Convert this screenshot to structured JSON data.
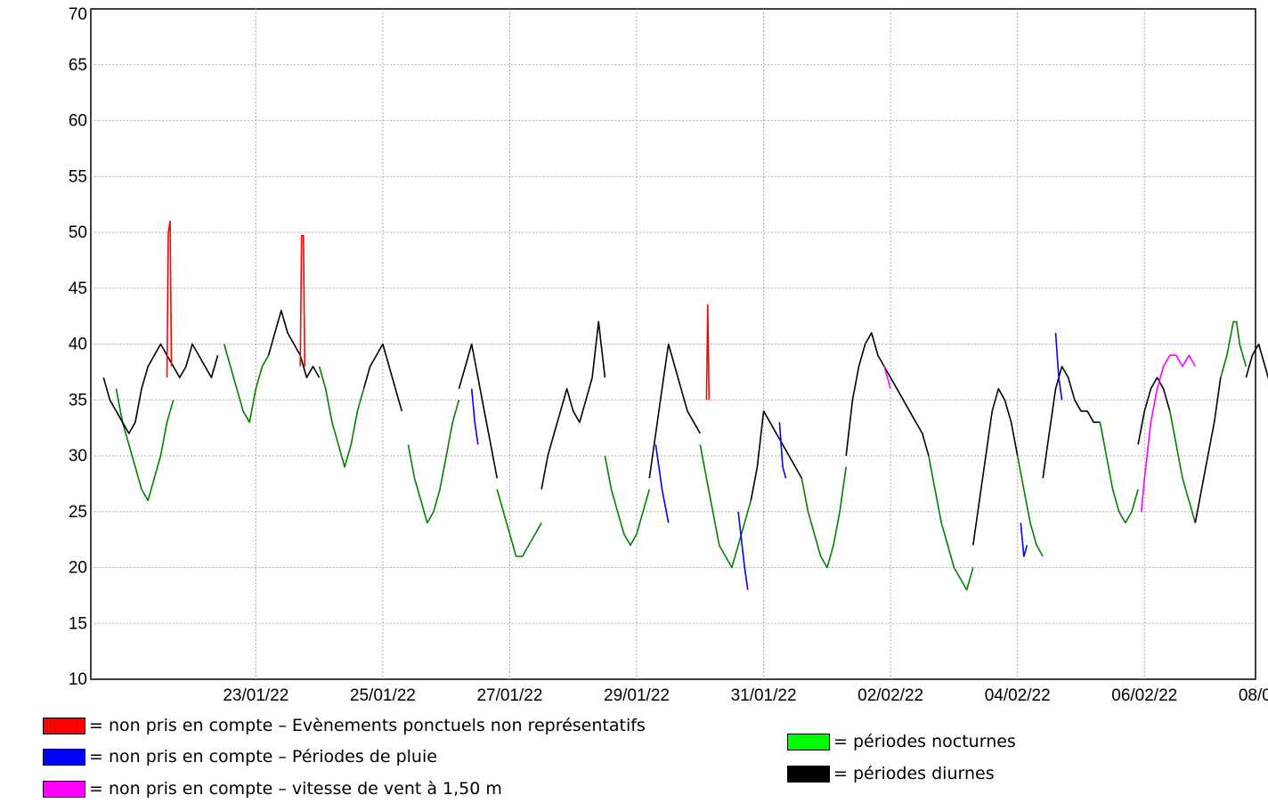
{
  "chart_data": {
    "type": "line",
    "title": "",
    "xlabel": "",
    "ylabel": "",
    "ylim": [
      10,
      70
    ],
    "y_ticks": [
      10,
      15,
      20,
      25,
      30,
      35,
      40,
      45,
      50,
      55,
      60,
      65,
      70
    ],
    "y_tick_labels": [
      "10",
      "15",
      "20",
      "25",
      "30",
      "35",
      "40",
      "45",
      "50",
      "55",
      "60",
      "65",
      "70"
    ],
    "xlim": [
      -1.6,
      16.75
    ],
    "x_tick_labels": [
      "23/01/22",
      "25/01/22",
      "27/01/22",
      "29/01/22",
      "31/01/22",
      "02/02/22",
      "04/02/22",
      "06/02/22",
      "08/02/22"
    ],
    "x_tick_days": [
      1,
      3,
      5,
      7,
      9,
      11,
      13,
      15,
      17
    ],
    "x_axis_origin_date": "22/01/22",
    "grid": true,
    "legend_placement": "bottom",
    "series": [
      {
        "color": "#008000",
        "segments": [
          [
            [
              -1.2,
              36
            ],
            [
              -1.1,
              33
            ],
            [
              -0.9,
              29
            ],
            [
              -0.8,
              27
            ],
            [
              -0.7,
              26
            ],
            [
              -0.6,
              28
            ],
            [
              -0.5,
              30
            ],
            [
              -0.4,
              33
            ],
            [
              -0.3,
              35
            ]
          ],
          [
            [
              0.5,
              40
            ],
            [
              0.6,
              38
            ],
            [
              0.7,
              36
            ],
            [
              0.8,
              34
            ],
            [
              0.9,
              33
            ],
            [
              1.0,
              36
            ],
            [
              1.1,
              38
            ],
            [
              1.2,
              39
            ]
          ],
          [
            [
              2.0,
              38
            ],
            [
              2.1,
              36
            ],
            [
              2.2,
              33
            ],
            [
              2.3,
              31
            ],
            [
              2.4,
              29
            ],
            [
              2.5,
              31
            ],
            [
              2.6,
              34
            ],
            [
              2.7,
              36
            ]
          ],
          [
            [
              3.4,
              31
            ],
            [
              3.5,
              28
            ],
            [
              3.6,
              26
            ],
            [
              3.7,
              24
            ],
            [
              3.8,
              25
            ],
            [
              3.9,
              27
            ],
            [
              4.0,
              30
            ],
            [
              4.1,
              33
            ],
            [
              4.2,
              35
            ]
          ],
          [
            [
              4.8,
              27
            ],
            [
              4.9,
              25
            ],
            [
              5.0,
              23
            ],
            [
              5.1,
              21
            ],
            [
              5.2,
              21
            ],
            [
              5.3,
              22
            ],
            [
              5.4,
              23
            ],
            [
              5.5,
              24
            ]
          ],
          [
            [
              6.5,
              30
            ],
            [
              6.6,
              27
            ],
            [
              6.7,
              25
            ],
            [
              6.8,
              23
            ],
            [
              6.9,
              22
            ],
            [
              7.0,
              23
            ],
            [
              7.1,
              25
            ],
            [
              7.2,
              27
            ]
          ],
          [
            [
              8.0,
              31
            ],
            [
              8.1,
              28
            ],
            [
              8.2,
              25
            ],
            [
              8.3,
              22
            ],
            [
              8.4,
              21
            ],
            [
              8.5,
              20
            ],
            [
              8.6,
              22
            ],
            [
              8.7,
              24
            ],
            [
              8.8,
              26
            ]
          ],
          [
            [
              9.6,
              28
            ],
            [
              9.7,
              25
            ],
            [
              9.8,
              23
            ],
            [
              9.9,
              21
            ],
            [
              10.0,
              20
            ],
            [
              10.1,
              22
            ],
            [
              10.2,
              25
            ],
            [
              10.3,
              29
            ]
          ],
          [
            [
              11.6,
              30
            ],
            [
              11.7,
              27
            ],
            [
              11.8,
              24
            ],
            [
              11.9,
              22
            ],
            [
              12.0,
              20
            ],
            [
              12.1,
              19
            ],
            [
              12.2,
              18
            ],
            [
              12.3,
              20
            ]
          ],
          [
            [
              13.0,
              30
            ],
            [
              13.1,
              27
            ],
            [
              13.2,
              24
            ],
            [
              13.3,
              22
            ],
            [
              13.4,
              21
            ]
          ],
          [
            [
              14.3,
              33
            ],
            [
              14.4,
              30
            ],
            [
              14.5,
              27
            ],
            [
              14.6,
              25
            ],
            [
              14.7,
              24
            ],
            [
              14.8,
              25
            ],
            [
              14.9,
              27
            ]
          ],
          [
            [
              15.4,
              34
            ],
            [
              15.5,
              31
            ],
            [
              15.6,
              28
            ],
            [
              15.7,
              26
            ],
            [
              15.8,
              24
            ]
          ],
          [
            [
              16.2,
              37
            ],
            [
              16.3,
              39
            ],
            [
              16.4,
              42
            ],
            [
              16.45,
              42
            ],
            [
              16.5,
              40
            ],
            [
              16.6,
              38
            ]
          ]
        ]
      },
      {
        "color": "#000000",
        "segments": [
          [
            [
              -1.4,
              37
            ],
            [
              -1.3,
              35
            ],
            [
              -1.2,
              34
            ],
            [
              -1.1,
              33
            ],
            [
              -1.0,
              32
            ],
            [
              -0.9,
              33
            ],
            [
              -0.8,
              36
            ],
            [
              -0.7,
              38
            ],
            [
              -0.6,
              39
            ],
            [
              -0.5,
              40
            ],
            [
              -0.4,
              39
            ],
            [
              -0.3,
              38
            ],
            [
              -0.2,
              37
            ],
            [
              -0.1,
              38
            ],
            [
              0.0,
              40
            ],
            [
              0.1,
              39
            ],
            [
              0.2,
              38
            ],
            [
              0.3,
              37
            ],
            [
              0.4,
              39
            ]
          ],
          [
            [
              1.2,
              39
            ],
            [
              1.3,
              41
            ],
            [
              1.4,
              43
            ],
            [
              1.5,
              41
            ],
            [
              1.6,
              40
            ],
            [
              1.7,
              39
            ],
            [
              1.8,
              37
            ],
            [
              1.9,
              38
            ],
            [
              2.0,
              37
            ]
          ],
          [
            [
              2.7,
              36
            ],
            [
              2.8,
              38
            ],
            [
              2.9,
              39
            ],
            [
              3.0,
              40
            ],
            [
              3.1,
              38
            ],
            [
              3.2,
              36
            ],
            [
              3.3,
              34
            ]
          ],
          [
            [
              4.2,
              36
            ],
            [
              4.3,
              38
            ],
            [
              4.4,
              40
            ],
            [
              4.5,
              37
            ],
            [
              4.6,
              34
            ],
            [
              4.7,
              31
            ],
            [
              4.8,
              28
            ]
          ],
          [
            [
              5.5,
              27
            ],
            [
              5.6,
              30
            ],
            [
              5.7,
              32
            ],
            [
              5.8,
              34
            ],
            [
              5.9,
              36
            ],
            [
              6.0,
              34
            ],
            [
              6.1,
              33
            ],
            [
              6.2,
              35
            ],
            [
              6.3,
              37
            ],
            [
              6.4,
              42
            ],
            [
              6.5,
              37
            ]
          ],
          [
            [
              7.2,
              28
            ],
            [
              7.3,
              32
            ],
            [
              7.4,
              36
            ],
            [
              7.5,
              40
            ],
            [
              7.6,
              38
            ],
            [
              7.7,
              36
            ],
            [
              7.8,
              34
            ],
            [
              7.9,
              33
            ],
            [
              8.0,
              32
            ]
          ],
          [
            [
              8.8,
              26
            ],
            [
              8.9,
              29
            ],
            [
              9.0,
              34
            ],
            [
              9.1,
              33
            ],
            [
              9.2,
              32
            ],
            [
              9.3,
              31
            ],
            [
              9.4,
              30
            ],
            [
              9.5,
              29
            ],
            [
              9.6,
              28
            ]
          ],
          [
            [
              10.3,
              30
            ],
            [
              10.4,
              35
            ],
            [
              10.5,
              38
            ],
            [
              10.6,
              40
            ],
            [
              10.7,
              41
            ],
            [
              10.8,
              39
            ],
            [
              10.9,
              38
            ],
            [
              11.0,
              37
            ],
            [
              11.1,
              36
            ],
            [
              11.2,
              35
            ],
            [
              11.3,
              34
            ],
            [
              11.4,
              33
            ],
            [
              11.5,
              32
            ],
            [
              11.6,
              30
            ]
          ],
          [
            [
              12.3,
              22
            ],
            [
              12.4,
              26
            ],
            [
              12.5,
              30
            ],
            [
              12.6,
              34
            ],
            [
              12.7,
              36
            ],
            [
              12.8,
              35
            ],
            [
              12.9,
              33
            ],
            [
              13.0,
              30
            ]
          ],
          [
            [
              13.4,
              28
            ],
            [
              13.5,
              32
            ],
            [
              13.6,
              36
            ],
            [
              13.7,
              38
            ],
            [
              13.8,
              37
            ],
            [
              13.9,
              35
            ],
            [
              14.0,
              34
            ],
            [
              14.1,
              34
            ],
            [
              14.2,
              33
            ],
            [
              14.3,
              33
            ]
          ],
          [
            [
              14.9,
              31
            ],
            [
              15.0,
              34
            ],
            [
              15.1,
              36
            ],
            [
              15.2,
              37
            ],
            [
              15.3,
              36
            ],
            [
              15.4,
              34
            ]
          ],
          [
            [
              15.8,
              24
            ],
            [
              15.9,
              27
            ],
            [
              16.0,
              30
            ],
            [
              16.1,
              33
            ],
            [
              16.2,
              37
            ]
          ],
          [
            [
              16.6,
              37
            ],
            [
              16.7,
              39
            ],
            [
              16.8,
              40
            ],
            [
              16.9,
              38
            ],
            [
              17.0,
              36
            ]
          ]
        ]
      },
      {
        "color": "#0000ff",
        "segments": [
          [
            [
              4.4,
              36
            ],
            [
              4.45,
              33
            ],
            [
              4.5,
              31
            ]
          ],
          [
            [
              7.3,
              31
            ],
            [
              7.4,
              27
            ],
            [
              7.5,
              24
            ]
          ],
          [
            [
              8.6,
              25
            ],
            [
              8.7,
              20
            ],
            [
              8.75,
              18
            ]
          ],
          [
            [
              9.25,
              33
            ],
            [
              9.3,
              29
            ],
            [
              9.35,
              28
            ]
          ],
          [
            [
              13.05,
              24
            ],
            [
              13.1,
              21
            ],
            [
              13.15,
              22
            ]
          ],
          [
            [
              13.6,
              41
            ],
            [
              13.65,
              37
            ],
            [
              13.7,
              35
            ]
          ]
        ]
      },
      {
        "color": "#ff00ff",
        "segments": [
          [
            [
              14.95,
              25
            ],
            [
              15.0,
              28
            ],
            [
              15.1,
              33
            ],
            [
              15.2,
              36
            ],
            [
              15.3,
              38
            ],
            [
              15.4,
              39
            ],
            [
              15.5,
              39
            ],
            [
              15.6,
              38
            ],
            [
              15.7,
              39
            ],
            [
              15.8,
              38
            ]
          ],
          [
            [
              10.9,
              38
            ],
            [
              10.95,
              37
            ],
            [
              11.0,
              36
            ]
          ]
        ]
      },
      {
        "color": "#ff0000",
        "segments": [
          [
            [
              -0.4,
              37
            ],
            [
              -0.38,
              50
            ],
            [
              -0.35,
              51
            ],
            [
              -0.33,
              38
            ]
          ],
          [
            [
              1.7,
              38
            ],
            [
              1.72,
              49.7
            ],
            [
              1.75,
              49.7
            ],
            [
              1.77,
              38
            ]
          ],
          [
            [
              8.1,
              35
            ],
            [
              8.12,
              43.5
            ],
            [
              8.14,
              35
            ]
          ]
        ]
      }
    ]
  },
  "legend": {
    "items": [
      {
        "color": "#ff0000",
        "label": "= non pris en compte – Evènements ponctuels non représentatifs"
      },
      {
        "color": "#0000ff",
        "label": "= non pris en compte – Périodes de pluie"
      },
      {
        "color": "#ff00ff",
        "label": "= non pris en compte – vitesse de vent à 1,50 m"
      },
      {
        "color": "#00ff00",
        "label": "= périodes nocturnes"
      },
      {
        "color": "#000000",
        "label": "= périodes diurnes"
      }
    ]
  }
}
